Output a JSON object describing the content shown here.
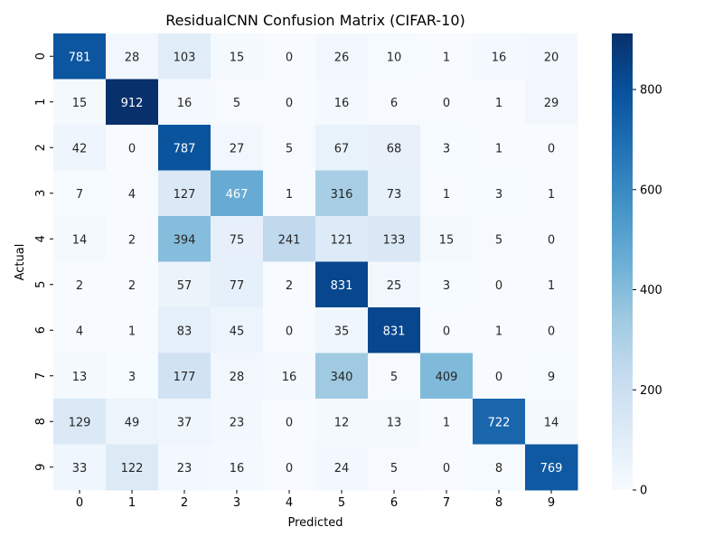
{
  "chart_data": {
    "type": "heatmap",
    "title": "ResidualCNN Confusion Matrix (CIFAR-10)",
    "xlabel": "Predicted",
    "ylabel": "Actual",
    "x_categories": [
      "0",
      "1",
      "2",
      "3",
      "4",
      "5",
      "6",
      "7",
      "8",
      "9"
    ],
    "y_categories": [
      "0",
      "1",
      "2",
      "3",
      "4",
      "5",
      "6",
      "7",
      "8",
      "9"
    ],
    "values": [
      [
        781,
        28,
        103,
        15,
        0,
        26,
        10,
        1,
        16,
        20
      ],
      [
        15,
        912,
        16,
        5,
        0,
        16,
        6,
        0,
        1,
        29
      ],
      [
        42,
        0,
        787,
        27,
        5,
        67,
        68,
        3,
        1,
        0
      ],
      [
        7,
        4,
        127,
        467,
        1,
        316,
        73,
        1,
        3,
        1
      ],
      [
        14,
        2,
        394,
        75,
        241,
        121,
        133,
        15,
        5,
        0
      ],
      [
        2,
        2,
        57,
        77,
        2,
        831,
        25,
        3,
        0,
        1
      ],
      [
        4,
        1,
        83,
        45,
        0,
        35,
        831,
        0,
        1,
        0
      ],
      [
        13,
        3,
        177,
        28,
        16,
        340,
        5,
        409,
        0,
        9
      ],
      [
        129,
        49,
        37,
        23,
        0,
        12,
        13,
        1,
        722,
        14
      ],
      [
        33,
        122,
        23,
        16,
        0,
        24,
        5,
        0,
        8,
        769
      ]
    ],
    "colormap": "Blues",
    "colorbar": {
      "min": 0,
      "max": 912,
      "ticks": [
        0,
        200,
        400,
        600,
        800
      ]
    },
    "colors": {
      "low": "#f7fbff",
      "high": "#08306b",
      "text_dark": "#262626",
      "text_light": "#ffffff"
    }
  }
}
